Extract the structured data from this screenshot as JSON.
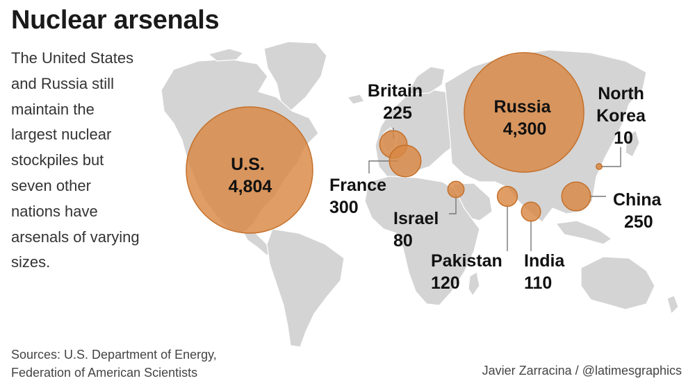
{
  "title": "Nuclear arsenals",
  "description_lines": [
    "The United States",
    "and Russia still",
    "maintain the",
    "largest nuclear",
    "stockpiles but",
    "seven other",
    "nations have",
    "arsenals of varying",
    "sizes."
  ],
  "sources_lines": [
    "Sources: U.S. Department of Energy,",
    "Federation of American Scientists"
  ],
  "credit": "Javier Zarracina / @latimesgraphics",
  "colors": {
    "bubble": "#d98843",
    "land": "#d4d4d4",
    "text": "#1a1a1a"
  },
  "countries": [
    {
      "id": "us",
      "name_lines": [
        "U.S."
      ],
      "value": "4,804",
      "warheads": 4804
    },
    {
      "id": "russia",
      "name_lines": [
        "Russia"
      ],
      "value": "4,300",
      "warheads": 4300
    },
    {
      "id": "britain",
      "name_lines": [
        "Britain"
      ],
      "value": "225",
      "warheads": 225
    },
    {
      "id": "france",
      "name_lines": [
        "France"
      ],
      "value": "300",
      "warheads": 300
    },
    {
      "id": "israel",
      "name_lines": [
        "Israel"
      ],
      "value": "80",
      "warheads": 80
    },
    {
      "id": "pakistan",
      "name_lines": [
        "Pakistan"
      ],
      "value": "120",
      "warheads": 120
    },
    {
      "id": "india",
      "name_lines": [
        "India"
      ],
      "value": "110",
      "warheads": 110
    },
    {
      "id": "china",
      "name_lines": [
        "China"
      ],
      "value": "250",
      "warheads": 250
    },
    {
      "id": "north-korea",
      "name_lines": [
        "North",
        "Korea"
      ],
      "value": "10",
      "warheads": 10
    }
  ]
}
